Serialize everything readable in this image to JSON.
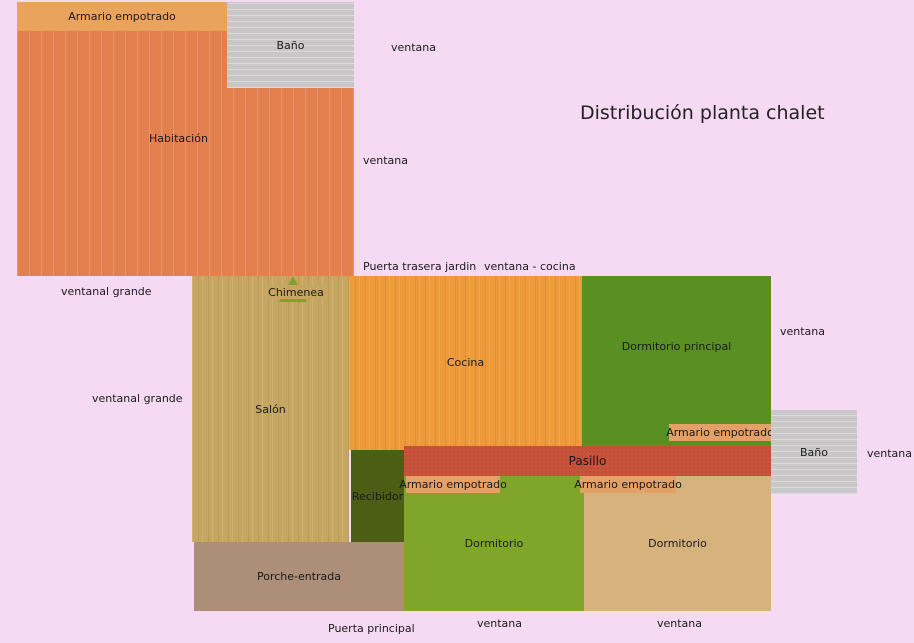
{
  "title": "Distribución planta chalet",
  "colors": {
    "background": "#f6daf3",
    "habitacion": "#e47f4e",
    "armario_top": "#eaa35c",
    "bano": "#c9c7c8",
    "salon": "#c6a660",
    "cocina": "#ee9a3a",
    "dormitorio_principal": "#5a8f22",
    "pasillo": "#c9533a",
    "recibidor": "#4c5e14",
    "dormitorio": "#7fa62a",
    "dormitorio_2": "#d6b27c",
    "porche": "#ad8f79",
    "armario": "#e3a067",
    "chimenea": "#7fa12e"
  },
  "rooms": {
    "habitacion": "Habitación",
    "armario_habitacion": "Armario empotrado",
    "bano_top": "Baño",
    "salon": "Salón",
    "chimenea": "Chimenea",
    "cocina": "Cocina",
    "dormitorio_principal": "Dormitorio principal",
    "armario_principal": "Armario empotrado",
    "bano_right": "Baño",
    "pasillo": "Pasillo",
    "recibidor": "Recibidor",
    "armario_dormitorio": "Armario empotrado",
    "armario_dormitorio_2": "Armario empotrado",
    "dormitorio": "Dormitorio",
    "dormitorio_2": "Dormitorio",
    "porche": "Porche-entrada"
  },
  "annotations": {
    "ventana_bano_top": "ventana",
    "ventana_habitacion": "ventana",
    "puerta_trasera": "Puerta trasera jardin",
    "ventana_cocina": "ventana - cocina",
    "ventanal_1": "ventanal grande",
    "ventanal_2": "ventanal grande",
    "ventana_principal": "ventana",
    "ventana_bano_right": "ventana",
    "puerta_principal": "Puerta principal",
    "ventana_dormitorio": "ventana",
    "ventana_dormitorio_2": "ventana"
  }
}
